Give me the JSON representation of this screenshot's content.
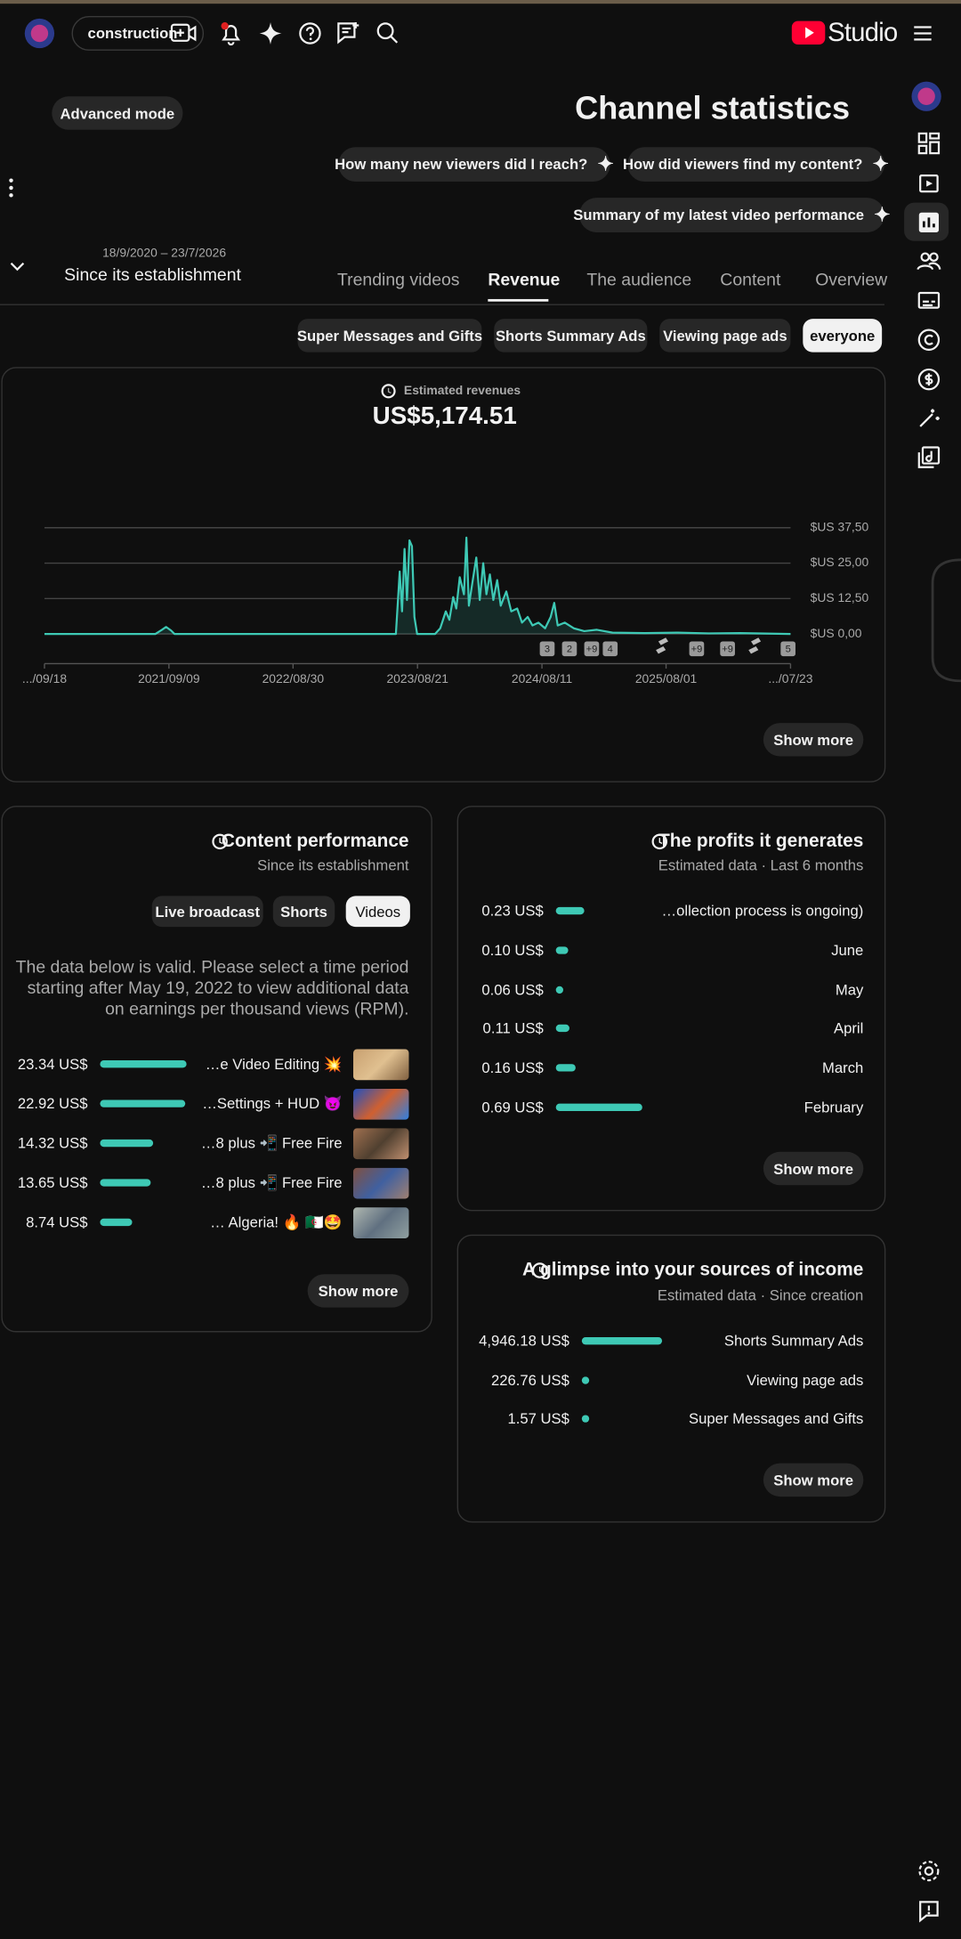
{
  "header": {
    "account": "construction",
    "logo": "Studio"
  },
  "advanced_mode": "Advanced mode",
  "title": "Channel statistics",
  "suggestions": [
    "How many new viewers did I reach?",
    "How did viewers find my content?",
    "Summary of my latest video performance"
  ],
  "date_range": {
    "dates": "18/9/2020 – 23/7/2026",
    "label": "Since its establishment"
  },
  "tabs": [
    "Trending videos",
    "Revenue",
    "The audience",
    "Content",
    "Overview"
  ],
  "filters": [
    "Super Messages and Gifts",
    "Shorts Summary Ads",
    "Viewing page ads",
    "everyone"
  ],
  "chart_data": {
    "type": "line",
    "title": "Estimated revenues",
    "total": "US$5,174.51",
    "color": "#3ec9b5",
    "x": [
      "2020/09/18",
      "2021/08/01",
      "2021/08/20",
      "2021/09/01",
      "2021/09/15",
      "2021/09/25",
      "2023/06/20",
      "2023/07/01",
      "2023/07/08",
      "2023/07/15",
      "2023/07/22",
      "2023/07/29",
      "2023/08/05",
      "2023/08/12",
      "2023/08/20",
      "2023/10/10",
      "2023/10/25",
      "2023/11/10",
      "2023/11/20",
      "2023/12/01",
      "2023/12/10",
      "2023/12/20",
      "2024/01/01",
      "2024/01/08",
      "2024/01/15",
      "2024/01/25",
      "2024/02/05",
      "2024/02/15",
      "2024/02/25",
      "2024/03/05",
      "2024/03/15",
      "2024/03/25",
      "2024/04/05",
      "2024/04/15",
      "2024/05/01",
      "2024/05/15",
      "2024/06/01",
      "2024/06/15",
      "2024/07/01",
      "2024/07/15",
      "2024/08/01",
      "2024/08/20",
      "2024/09/05",
      "2024/09/15",
      "2024/09/25",
      "2024/10/15",
      "2024/11/10",
      "2024/12/10",
      "2025/01/15",
      "2025/03/01",
      "2025/06/01",
      "2025/09/01",
      "2025/12/01",
      "2026/03/01",
      "2026/07/23"
    ],
    "values": [
      0,
      0,
      1.5,
      2.5,
      1.2,
      0,
      0,
      22,
      8,
      30,
      12,
      33,
      31,
      6,
      0,
      0,
      2,
      8,
      5,
      13,
      9,
      20,
      14,
      34,
      10,
      18,
      27,
      12,
      25,
      14,
      21,
      12,
      19,
      10,
      15,
      8,
      9,
      4,
      6,
      3,
      4,
      2,
      6,
      11,
      3,
      4,
      2,
      1,
      1.5,
      0.5,
      0.3,
      0.5,
      0.2,
      0.3,
      0
    ],
    "xlim": [
      "2020/09/18",
      "2026/07/23"
    ],
    "xticks": [
      {
        "value": "2020/09/18",
        "label": ".../09/18"
      },
      "2021/09/09",
      "2022/08/30",
      "2023/08/21",
      "2024/08/11",
      "2025/08/01",
      {
        "value": "2026/07/23",
        "label": ".../07/23"
      }
    ],
    "ylim": [
      0,
      37.5
    ],
    "yticks": [
      {
        "value": 0,
        "label": "$US 0,00"
      },
      {
        "value": 12.5,
        "label": "$US 12,50"
      },
      {
        "value": 25,
        "label": "$US 25,00"
      },
      {
        "value": 37.5,
        "label": "$US 37,50"
      }
    ],
    "grid": true,
    "annotations": [
      "3",
      "2",
      "+9",
      "4",
      "+9",
      "+9",
      "5"
    ]
  },
  "show_more": "Show more",
  "content_performance": {
    "title": "Content performance",
    "subtitle": "Since its establishment",
    "chips": [
      "Live broadcast",
      "Shorts",
      "Videos"
    ],
    "note": "The data below is valid. Please select a time period starting after May 19, 2022 to view additional data on earnings per thousand views (RPM).",
    "values": [
      23.34,
      22.92,
      14.32,
      13.65,
      8.74
    ],
    "value_labels": [
      "23.34 US$",
      "22.92 US$",
      "14.32 US$",
      "13.65 US$",
      "8.74 US$"
    ],
    "titles": [
      "…e Video Editing 💥",
      "…Settings + HUD 😈",
      "…8 plus 📲 Free Fire",
      "…8 plus 📲 Free Fire",
      "… Algeria! 🔥 🇩🇿🤩"
    ]
  },
  "profits": {
    "title": "The profits it generates",
    "subtitle": "Estimated data · Last 6 months",
    "values": [
      0.23,
      0.1,
      0.06,
      0.11,
      0.16,
      0.69
    ],
    "value_labels": [
      "0.23 US$",
      "0.10 US$",
      "0.06 US$",
      "0.11 US$",
      "0.16 US$",
      "0.69 US$"
    ],
    "categories": [
      "…ollection process is ongoing)",
      "June",
      "May",
      "April",
      "March",
      "February"
    ]
  },
  "income_sources": {
    "title": "A glimpse into your sources of income",
    "subtitle": "Estimated data · Since creation",
    "values": [
      4946.18,
      226.76,
      1.57
    ],
    "value_labels": [
      "4,946.18 US$",
      "226.76 US$",
      "1.57 US$"
    ],
    "categories": [
      "Shorts Summary Ads",
      "Viewing page ads",
      "Super Messages and Gifts"
    ]
  }
}
